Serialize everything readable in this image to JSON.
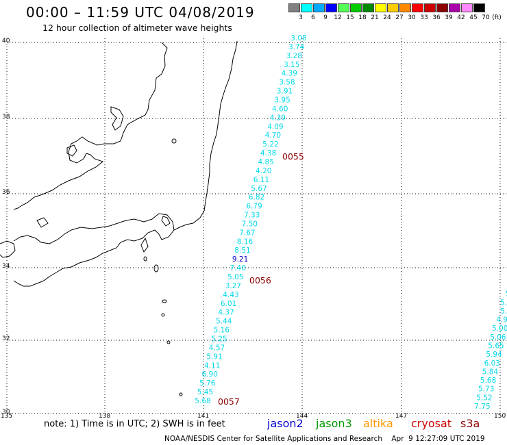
{
  "header": {
    "title": "00:00 – 11:59 UTC 04/08/2019",
    "subtitle": "12 hour collection of altimeter wave heights"
  },
  "legend": {
    "unit": "(ft)",
    "bins": [
      {
        "label": "3",
        "color": "#808080"
      },
      {
        "label": "6",
        "color": "#00ffff"
      },
      {
        "label": "9",
        "color": "#00aaff"
      },
      {
        "label": "12",
        "color": "#0000ff"
      },
      {
        "label": "15",
        "color": "#55ff55"
      },
      {
        "label": "18",
        "color": "#00cc00"
      },
      {
        "label": "21",
        "color": "#008800"
      },
      {
        "label": "24",
        "color": "#ffff00"
      },
      {
        "label": "27",
        "color": "#ffcc00"
      },
      {
        "label": "30",
        "color": "#ff8800"
      },
      {
        "label": "33",
        "color": "#ff0000"
      },
      {
        "label": "36",
        "color": "#cc0000"
      },
      {
        "label": "39",
        "color": "#8b0000"
      },
      {
        "label": "42",
        "color": "#aa00aa"
      },
      {
        "label": "45",
        "color": "#ff88ff"
      },
      {
        "label": "70",
        "color": "#000000"
      }
    ]
  },
  "axes": {
    "lat_ticks": [
      "40",
      "38",
      "36",
      "34",
      "32",
      "30"
    ],
    "lon_ticks": [
      "135",
      "138",
      "141",
      "144",
      "147",
      "150"
    ]
  },
  "colors": {
    "cyan": "#00d8e8",
    "blue": "#0000cc",
    "grid": "#000000",
    "coast": "#000000",
    "pass_label": "#8b0000"
  },
  "tracks": [
    {
      "values": [
        "3.08",
        "3.74",
        "3.28",
        "3.15",
        "4.39",
        "3.58",
        "3.91",
        "3.95",
        "4.60",
        "4.39",
        "4.09",
        "4.70",
        "5.22",
        "4.38",
        "4.85",
        "4.20",
        "6.11",
        "5.67",
        "6.82",
        "6.79",
        "7.33",
        "7.50",
        "7.67",
        "8.16",
        "8.51",
        "9.21",
        "7.40",
        "5.05",
        "3.27",
        "4.43",
        "6.01",
        "4.37",
        "5.44",
        "5.16",
        "5.25",
        "4.57",
        "5.91",
        "4.11",
        "6.90",
        "5.76",
        "5.45",
        "5.68"
      ]
    },
    {
      "values": [
        "5",
        "5",
        "5.4",
        "5.",
        "4.9",
        "5.00",
        "5.06",
        "5.65",
        "5.94",
        "6.03",
        "5.84",
        "5.68",
        "5.73",
        "5.52",
        "7.75"
      ]
    }
  ],
  "passes": [
    {
      "label": "0055"
    },
    {
      "label": "0056"
    },
    {
      "label": "0057"
    }
  ],
  "footer": {
    "note": "note: 1) Time is in UTC; 2) SWH is in feet",
    "satellites": [
      {
        "name": "jason2",
        "color": "#0000cc"
      },
      {
        "name": "jason3",
        "color": "#009900"
      },
      {
        "name": "altika",
        "color": "#ff9900"
      },
      {
        "name": "cryosat",
        "color": "#cc0000"
      },
      {
        "name": "s3a",
        "color": "#8b0000"
      }
    ],
    "credit": "NOAA/NESDIS Center for Satellite Applications and Research    Apr  9 12:27:09 UTC 2019"
  }
}
